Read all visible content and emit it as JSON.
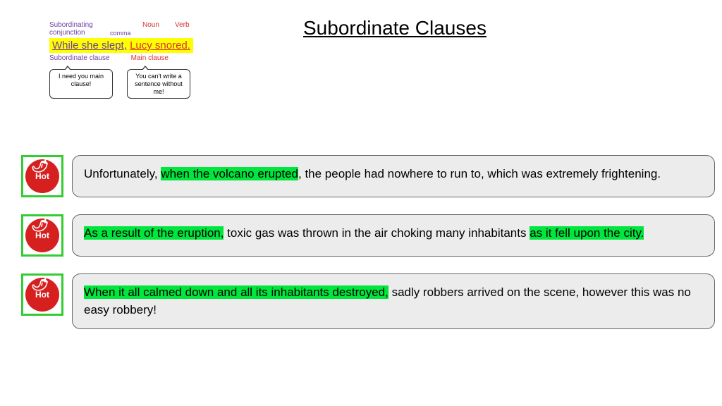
{
  "title": "Subordinate Clauses",
  "diagram": {
    "top_labels": {
      "sub_conj": "Subordinating conjunction",
      "comma": "comma",
      "noun": "Noun",
      "verb": "Verb"
    },
    "sentence": {
      "part1": "While she slept,",
      "part2": "Lucy snored."
    },
    "bottom_labels": {
      "sub_clause": "Subordinate clause",
      "main_clause": "Main clause"
    },
    "bubble1": "I need you main clause!",
    "bubble2": "You can't write a sentence without me!"
  },
  "hot_label": "Hot",
  "examples": [
    {
      "segments": [
        {
          "text": "Unfortunately, ",
          "hl": false
        },
        {
          "text": "when the volcano erupted",
          "hl": true
        },
        {
          "text": ", the people had nowhere to run to, which was extremely frightening.",
          "hl": false
        }
      ]
    },
    {
      "segments": [
        {
          "text": "As a result of the eruption,",
          "hl": true
        },
        {
          "text": " toxic gas was thrown in the air choking many inhabitants ",
          "hl": false
        },
        {
          "text": "as it fell upon the city.",
          "hl": true
        }
      ]
    },
    {
      "segments": [
        {
          "text": "When it all calmed down  and all its inhabitants destroyed,",
          "hl": true
        },
        {
          "text": " sadly robbers arrived on the scene, however  this was no easy robbery!",
          "hl": false
        }
      ]
    }
  ]
}
